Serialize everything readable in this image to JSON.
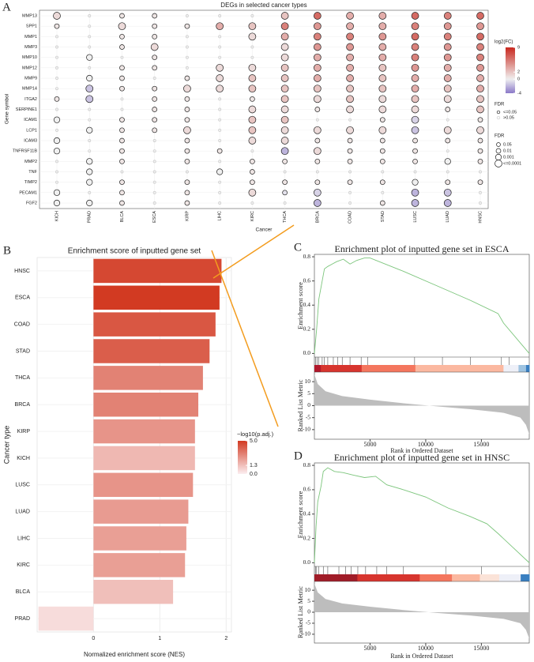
{
  "panel_labels": [
    "A",
    "B",
    "C",
    "D"
  ],
  "chart_data": [
    {
      "type": "bubble",
      "title": "DEGs in selected cancer types",
      "xlabel": "Cancer",
      "ylabel": "Gene symbol",
      "categories": [
        "KICH",
        "PRAD",
        "BLCA",
        "ESCA",
        "KIRP",
        "LIHC",
        "KIRC",
        "THCA",
        "BRCA",
        "COAD",
        "STAD",
        "LUSC",
        "LUAD",
        "HNSC"
      ],
      "genes": [
        "MMP13",
        "SPP1",
        "MMP1",
        "MMP3",
        "MMP10",
        "MMP12",
        "MMP9",
        "MMP14",
        "ITGA2",
        "SERPINE1",
        "ICAM1",
        "LCP1",
        "ICAM3",
        "TNFRSF11B",
        "MMP2",
        "TNF",
        "TIMP2",
        "PECAM1",
        "FGF2"
      ],
      "log2fc": [
        [
          1,
          0,
          0.5,
          0.5,
          0,
          0,
          0,
          2,
          6,
          3,
          3,
          6,
          5,
          6
        ],
        [
          0.5,
          0,
          1,
          0.5,
          0.5,
          3,
          2,
          5,
          4,
          3,
          3,
          5,
          4,
          4
        ],
        [
          0,
          0,
          0.5,
          0.5,
          0,
          0,
          1,
          3,
          5,
          5,
          4,
          6,
          5,
          6
        ],
        [
          0,
          0,
          0.5,
          1,
          0,
          0,
          0,
          1,
          4,
          4,
          3,
          5,
          4,
          5
        ],
        [
          0,
          0,
          0,
          0.5,
          0,
          0,
          0,
          1,
          3,
          3,
          3,
          5,
          4,
          5
        ],
        [
          0,
          0,
          0.5,
          0.5,
          0,
          1,
          1,
          2,
          3,
          3,
          2,
          4,
          3,
          4
        ],
        [
          0,
          0,
          0.5,
          0,
          0.5,
          1,
          2,
          2,
          3,
          3,
          2,
          3,
          3,
          3
        ],
        [
          0,
          -1.5,
          0.5,
          0.5,
          1,
          1,
          2,
          2,
          2,
          2,
          2,
          3,
          2,
          3
        ],
        [
          0.5,
          -1.5,
          0,
          0.5,
          0.5,
          0,
          0.5,
          2,
          1,
          2,
          1,
          2,
          1,
          2
        ],
        [
          0,
          0,
          0,
          0.5,
          0.5,
          0,
          1,
          1,
          0.5,
          1,
          1,
          1,
          0.5,
          2
        ],
        [
          0,
          0,
          0.5,
          0.5,
          0.5,
          0,
          2,
          2,
          0,
          0,
          0.5,
          -1,
          0,
          0.5
        ],
        [
          0,
          0,
          0.5,
          0.5,
          1,
          0,
          2,
          1,
          1,
          1,
          1,
          -1.5,
          1,
          1
        ],
        [
          0,
          0,
          0.5,
          0,
          0.5,
          0,
          1,
          1,
          0.5,
          0.5,
          0.5,
          0.5,
          0.5,
          0.5
        ],
        [
          0,
          0,
          0.5,
          0,
          0.5,
          0.5,
          0,
          -2,
          1,
          0.5,
          0.5,
          0.5,
          0,
          0.5
        ],
        [
          0,
          0,
          0.5,
          0,
          0.5,
          0,
          0.5,
          0.5,
          0.5,
          0.5,
          0.5,
          0.5,
          0,
          0.5
        ],
        [
          0,
          0,
          0,
          0,
          0,
          0,
          0.5,
          0,
          0,
          0,
          0,
          0,
          0,
          0
        ],
        [
          0,
          0,
          0.5,
          0,
          0.5,
          0,
          0.5,
          0.5,
          0.5,
          0.5,
          0.5,
          0,
          0.5,
          0.5
        ],
        [
          0,
          0,
          0.5,
          0,
          0.5,
          0,
          1,
          -0.5,
          -1,
          0,
          0,
          -2,
          -1.5,
          0
        ],
        [
          0,
          0,
          0.5,
          0,
          0.5,
          0,
          0,
          0,
          -2,
          0,
          0.5,
          -2,
          -2,
          0
        ]
      ],
      "fdr": [
        [
          0.0001,
          0.3,
          0.01,
          0.01,
          0.3,
          0.3,
          0.3,
          0.0001,
          0.0001,
          0.0001,
          0.0001,
          0.0001,
          0.0001,
          0.0001
        ],
        [
          0.01,
          0.3,
          0.0001,
          0.01,
          0.01,
          0.0001,
          0.0001,
          0.0001,
          0.0001,
          0.0001,
          0.0001,
          0.0001,
          0.0001,
          0.0001
        ],
        [
          0.3,
          0.3,
          0.01,
          0.01,
          0.3,
          0.3,
          0.0001,
          0.0001,
          0.0001,
          0.0001,
          0.0001,
          0.0001,
          0.0001,
          0.0001
        ],
        [
          0.3,
          0.3,
          0.01,
          0.0001,
          0.3,
          0.3,
          0.3,
          0.0001,
          0.0001,
          0.0001,
          0.0001,
          0.0001,
          0.0001,
          0.0001
        ],
        [
          0.3,
          0.001,
          0.3,
          0.01,
          0.3,
          0.3,
          0.3,
          0.0001,
          0.0001,
          0.0001,
          0.0001,
          0.0001,
          0.0001,
          0.0001
        ],
        [
          0.3,
          0.3,
          0.01,
          0.01,
          0.3,
          0.0001,
          0.0001,
          0.0001,
          0.0001,
          0.0001,
          0.0001,
          0.0001,
          0.0001,
          0.0001
        ],
        [
          0.3,
          0.001,
          0.01,
          0.3,
          0.01,
          0.0001,
          0.0001,
          0.0001,
          0.0001,
          0.0001,
          0.0001,
          0.0001,
          0.0001,
          0.0001
        ],
        [
          0.3,
          0.0001,
          0.01,
          0.01,
          0.0001,
          0.0001,
          0.0001,
          0.0001,
          0.0001,
          0.0001,
          0.0001,
          0.0001,
          0.0001,
          0.0001
        ],
        [
          0.01,
          0.0001,
          0.3,
          0.01,
          0.01,
          0.3,
          0.01,
          0.0001,
          0.0001,
          0.0001,
          0.0001,
          0.0001,
          0.0001,
          0.0001
        ],
        [
          0.3,
          0.3,
          0.3,
          0.01,
          0.01,
          0.3,
          0.0001,
          0.0001,
          0.01,
          0.0001,
          0.0001,
          0.0001,
          0.01,
          0.0001
        ],
        [
          0.001,
          0.3,
          0.01,
          0.01,
          0.01,
          0.3,
          0.0001,
          0.0001,
          0.3,
          0.3,
          0.01,
          0.0001,
          0.3,
          0.01
        ],
        [
          0.3,
          0.001,
          0.01,
          0.01,
          0.0001,
          0.3,
          0.0001,
          0.0001,
          0.0001,
          0.0001,
          0.0001,
          0.0001,
          0.0001,
          0.0001
        ],
        [
          0.001,
          0.3,
          0.01,
          0.3,
          0.01,
          0.3,
          0.0001,
          0.0001,
          0.01,
          0.01,
          0.01,
          0.01,
          0.01,
          0.01
        ],
        [
          0.001,
          0.3,
          0.01,
          0.3,
          0.01,
          0.01,
          0.3,
          0.0001,
          0.0001,
          0.01,
          0.01,
          0.01,
          0.3,
          0.01
        ],
        [
          0.3,
          0.001,
          0.01,
          0.3,
          0.01,
          0.3,
          0.01,
          0.01,
          0.01,
          0.01,
          0.01,
          0.01,
          0.001,
          0.01
        ],
        [
          0.3,
          0.001,
          0.3,
          0.3,
          0.3,
          0.001,
          0.01,
          0.3,
          0.3,
          0.3,
          0.3,
          0.3,
          0.3,
          0.3
        ],
        [
          0.3,
          0.001,
          0.01,
          0.3,
          0.01,
          0.3,
          0.01,
          0.01,
          0.01,
          0.01,
          0.01,
          0.001,
          0.01,
          0.01
        ],
        [
          0.001,
          0.3,
          0.01,
          0.3,
          0.01,
          0.3,
          0.0001,
          0.01,
          0.0001,
          0.3,
          0.3,
          0.0001,
          0.0001,
          0.3
        ],
        [
          0.001,
          0.001,
          0.01,
          0.3,
          0.01,
          0.3,
          0.3,
          0.3,
          0.0001,
          0.3,
          0.01,
          0.0001,
          0.0001,
          0.3
        ]
      ],
      "color_title": "log2(FC)",
      "color_lim": [
        -4,
        9
      ],
      "color_ticks": [
        9,
        2,
        0,
        -4
      ],
      "fdr_title": "FDR",
      "fdr_legend": [
        "<=0.05",
        ">0.05"
      ],
      "size_title": "FDR",
      "fdr_sizes": [
        0.05,
        0.01,
        0.001,
        {
          "value": 0.0001,
          "label": "<=0.0001"
        }
      ]
    },
    {
      "type": "bar",
      "orientation": "horizontal",
      "title": "Enrichment score of inputted gene set",
      "xlabel": "Normalized enrichment score (NES)",
      "ylabel": "Cancer type",
      "categories": [
        "HNSC",
        "ESCA",
        "COAD",
        "STAD",
        "THCA",
        "BRCA",
        "KIRP",
        "KICH",
        "LUSC",
        "LUAD",
        "LIHC",
        "KIRC",
        "BLCA",
        "PRAD"
      ],
      "values": [
        1.93,
        1.9,
        1.84,
        1.75,
        1.65,
        1.58,
        1.53,
        1.53,
        1.5,
        1.43,
        1.4,
        1.38,
        1.2,
        -0.83
      ],
      "color_values": [
        4.6,
        5.0,
        4.2,
        4.0,
        3.0,
        3.0,
        2.5,
        1.5,
        2.5,
        2.3,
        2.2,
        2.2,
        1.3,
        0.5
      ],
      "color_title": "−log10(p.adj.)",
      "color_lim": [
        0,
        5
      ],
      "color_ticks": [
        {
          "value": 5,
          "label": "5.0"
        },
        1.3,
        {
          "value": 0,
          "label": "0.0"
        }
      ],
      "xlim": [
        -0.85,
        2.08
      ],
      "xticks": [
        0,
        1,
        2
      ],
      "grid": true
    },
    {
      "type": "line",
      "title": "Enrichment plot of inputted gene set in ESCA",
      "ylabel": "Enrichment score",
      "metric_label": "Ranked List Metric",
      "xlabel": "Rank in Ordered Dataset",
      "color": "#7cc57c",
      "x": [
        0,
        200,
        400,
        600,
        900,
        1200,
        1600,
        2000,
        2600,
        3200,
        3800,
        4500,
        5000,
        8000,
        11000,
        14000,
        16500,
        17000,
        19300
      ],
      "values": [
        0,
        0.2,
        0.45,
        0.55,
        0.7,
        0.72,
        0.74,
        0.76,
        0.78,
        0.74,
        0.77,
        0.79,
        0.79,
        0.68,
        0.56,
        0.44,
        0.33,
        0.25,
        0
      ],
      "hits": [
        100,
        250,
        400,
        700,
        900,
        1200,
        1700,
        2100,
        2500,
        3200,
        4200,
        4800,
        9000,
        11500,
        14000,
        16800,
        17500
      ],
      "metric_x": [
        0,
        300,
        1000,
        2500,
        5000,
        8000,
        11000,
        14000,
        17000,
        18500,
        19000,
        19300
      ],
      "metric_values": [
        13,
        9,
        6,
        4,
        2.5,
        1,
        -0.3,
        -1.5,
        -3,
        -5,
        -8,
        -12
      ],
      "xlim": [
        0,
        19300
      ],
      "xticks": [
        5000,
        10000,
        15000
      ],
      "ylim": [
        -0.03,
        0.82
      ],
      "yticks": [
        {
          "value": 0,
          "label": "0.0"
        },
        0.2,
        0.4,
        0.6,
        0.8
      ],
      "metric_ylim": [
        -14,
        14
      ],
      "metric_yticks": [
        10,
        5,
        0,
        -5,
        -10
      ]
    },
    {
      "type": "line",
      "title": "Enrichment plot of inputted gene set in HNSC",
      "ylabel": "Enrichment score",
      "metric_label": "Ranked List Metric",
      "xlabel": "Rank in Ordered Dataset",
      "color": "#7cc57c",
      "x": [
        0,
        150,
        300,
        600,
        800,
        1200,
        1800,
        2600,
        3500,
        4500,
        5500,
        6500,
        8000,
        10000,
        12000,
        14000,
        15500,
        16500,
        19300
      ],
      "values": [
        0,
        0.3,
        0.5,
        0.63,
        0.75,
        0.78,
        0.75,
        0.74,
        0.72,
        0.7,
        0.71,
        0.64,
        0.6,
        0.54,
        0.45,
        0.38,
        0.32,
        0.24,
        0
      ],
      "hits": [
        100,
        200,
        400,
        800,
        1200,
        2200,
        2800,
        3300,
        3900,
        4600,
        5600,
        6500,
        8000,
        11800,
        15000
      ],
      "metric_x": [
        0,
        300,
        1000,
        2500,
        5000,
        8000,
        11000,
        14000,
        17000,
        18500,
        19000,
        19300
      ],
      "metric_values": [
        13,
        9,
        6,
        4,
        2.5,
        1,
        -0.3,
        -1.5,
        -3,
        -5,
        -8,
        -12
      ],
      "xlim": [
        0,
        19300
      ],
      "xticks": [
        5000,
        10000,
        15000
      ],
      "ylim": [
        -0.03,
        0.82
      ],
      "yticks": [
        {
          "value": 0,
          "label": "0.0"
        },
        0.2,
        0.4,
        0.6,
        0.8
      ],
      "metric_ylim": [
        -14,
        14
      ],
      "metric_yticks": [
        10,
        5,
        0,
        -5,
        -10
      ]
    }
  ]
}
